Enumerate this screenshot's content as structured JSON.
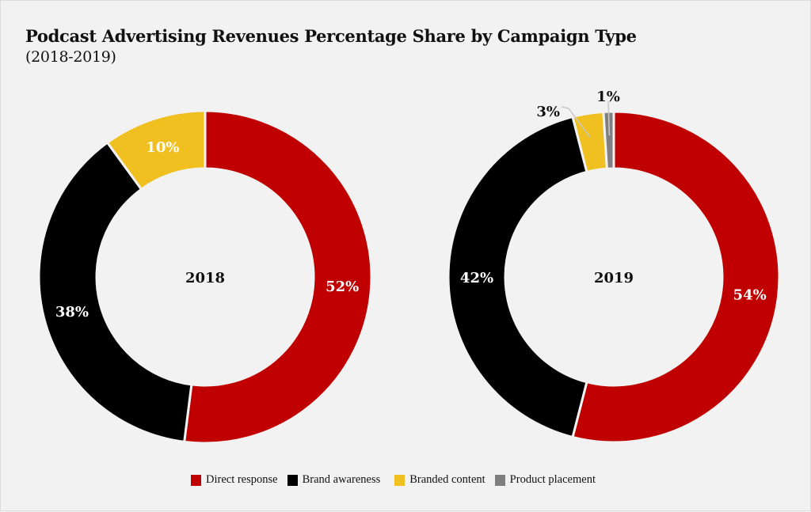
{
  "chart_data": [
    {
      "type": "pie",
      "variant": "donut",
      "title": "Podcast Advertising Revenues Percentage Share by Campaign Type",
      "subtitle": "(2018-2019)",
      "center_label": "2018",
      "categories": [
        "Direct response",
        "Brand awareness",
        "Branded content",
        "Product placement"
      ],
      "values": [
        52,
        38,
        10,
        0
      ],
      "labels": [
        "52%",
        "38%",
        "10%",
        ""
      ]
    },
    {
      "type": "pie",
      "variant": "donut",
      "title": "Podcast Advertising Revenues Percentage Share by Campaign Type",
      "subtitle": "(2018-2019)",
      "center_label": "2019",
      "categories": [
        "Direct response",
        "Brand awareness",
        "Branded content",
        "Product placement"
      ],
      "values": [
        54,
        42,
        3,
        1
      ],
      "labels": [
        "54%",
        "42%",
        "3%",
        "1%"
      ]
    }
  ],
  "header": {
    "title": "Podcast Advertising Revenues Percentage Share by Campaign Type",
    "subtitle": "(2018-2019)"
  },
  "legend": {
    "placement": "bottom",
    "items": [
      {
        "label": "Direct response",
        "color": "#c00000"
      },
      {
        "label": "Brand awareness",
        "color": "#000000"
      },
      {
        "label": "Branded content",
        "color": "#f0c020"
      },
      {
        "label": "Product placement",
        "color": "#7f7f7f"
      }
    ]
  },
  "colors": [
    "#c00000",
    "#000000",
    "#f0c020",
    "#7f7f7f"
  ]
}
